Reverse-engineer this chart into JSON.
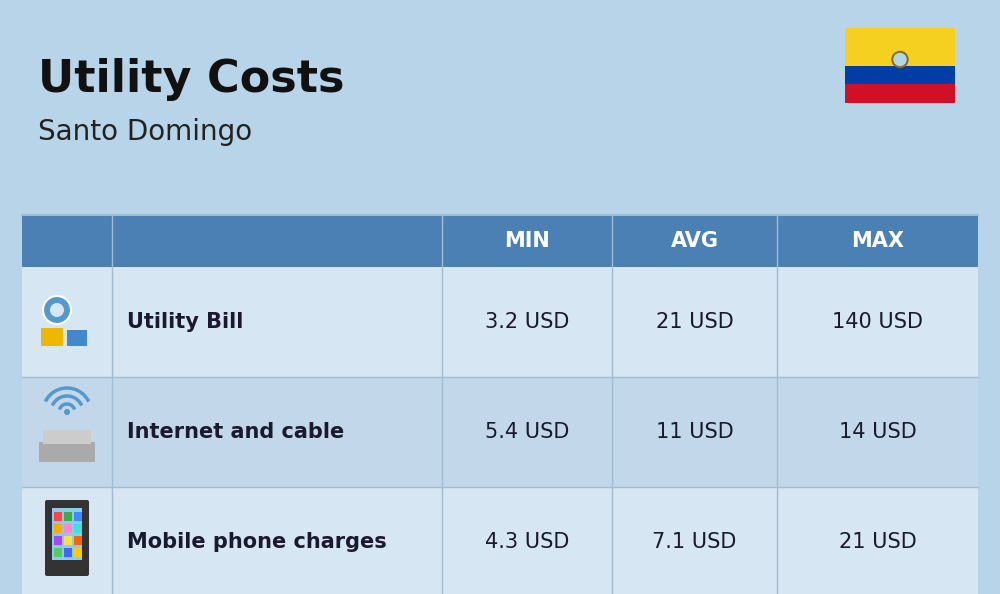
{
  "title": "Utility Costs",
  "subtitle": "Santo Domingo",
  "background_color": "#b8d4e8",
  "table_header_bg": "#4a80b4",
  "table_header_text": "#ffffff",
  "table_row_odd_bg": "#d6e6f2",
  "table_row_even_bg": "#c2d8ea",
  "table_sep_color": "#a0bdd4",
  "title_color": "#111111",
  "subtitle_color": "#222222",
  "data_text_color": "#1a1a2e",
  "header_labels": [
    "MIN",
    "AVG",
    "MAX"
  ],
  "rows": [
    {
      "icon_label": "utility",
      "name": "Utility Bill",
      "min": "3.2 USD",
      "avg": "21 USD",
      "max": "140 USD"
    },
    {
      "icon_label": "internet",
      "name": "Internet and cable",
      "min": "5.4 USD",
      "avg": "11 USD",
      "max": "14 USD"
    },
    {
      "icon_label": "mobile",
      "name": "Mobile phone charges",
      "min": "4.3 USD",
      "avg": "7.1 USD",
      "max": "21 USD"
    }
  ],
  "flag_yellow": "#F5D020",
  "flag_blue": "#003DA5",
  "flag_red": "#CE1126",
  "title_fontsize": 32,
  "subtitle_fontsize": 20,
  "header_fontsize": 15,
  "row_fontsize": 15,
  "row_name_fontsize": 15
}
